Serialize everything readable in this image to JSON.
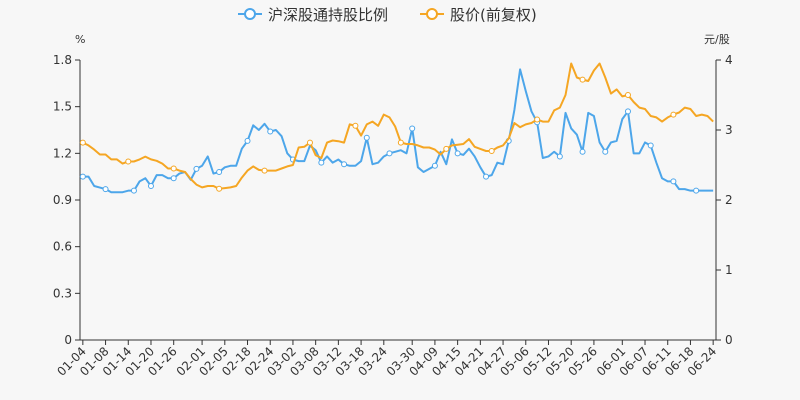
{
  "chart_data": {
    "type": "line",
    "title": "",
    "left_axis": {
      "unit": "%",
      "ylim": [
        0,
        1.8
      ],
      "ticks": [
        "0",
        "0.3",
        "0.6",
        "0.9",
        "1.2",
        "1.5",
        "1.8"
      ]
    },
    "right_axis": {
      "unit": "元/股",
      "ylim": [
        0,
        4
      ],
      "ticks": [
        "0",
        "1",
        "2",
        "3",
        "4"
      ]
    },
    "x_tick_labels": [
      "01-04",
      "01-08",
      "01-14",
      "01-20",
      "01-26",
      "02-01",
      "02-05",
      "02-18",
      "02-24",
      "03-02",
      "03-08",
      "03-12",
      "03-18",
      "03-24",
      "03-30",
      "04-09",
      "04-15",
      "04-21",
      "04-27",
      "05-06",
      "05-12",
      "05-20",
      "05-26",
      "06-01",
      "06-07",
      "06-11",
      "06-18",
      "06-24"
    ],
    "legend_position": "top-center",
    "series": [
      {
        "name": "沪深股通持股比例",
        "axis": "left",
        "color": "#4da6ea",
        "values": [
          1.05,
          1.05,
          0.99,
          0.98,
          0.97,
          0.95,
          0.95,
          0.95,
          0.96,
          0.96,
          1.02,
          1.04,
          0.99,
          1.06,
          1.06,
          1.04,
          1.04,
          1.07,
          1.08,
          1.03,
          1.1,
          1.12,
          1.18,
          1.07,
          1.08,
          1.11,
          1.12,
          1.12,
          1.23,
          1.28,
          1.38,
          1.35,
          1.39,
          1.34,
          1.35,
          1.31,
          1.2,
          1.16,
          1.15,
          1.15,
          1.25,
          1.22,
          1.14,
          1.18,
          1.14,
          1.16,
          1.13,
          1.12,
          1.12,
          1.15,
          1.3,
          1.13,
          1.14,
          1.18,
          1.2,
          1.21,
          1.22,
          1.2,
          1.36,
          1.11,
          1.08,
          1.1,
          1.12,
          1.21,
          1.13,
          1.29,
          1.2,
          1.19,
          1.23,
          1.18,
          1.11,
          1.05,
          1.06,
          1.14,
          1.13,
          1.28,
          1.48,
          1.74,
          1.6,
          1.47,
          1.4,
          1.17,
          1.18,
          1.21,
          1.18,
          1.46,
          1.36,
          1.32,
          1.21,
          1.46,
          1.44,
          1.27,
          1.21,
          1.27,
          1.28,
          1.42,
          1.47,
          1.2,
          1.2,
          1.27,
          1.25,
          1.14,
          1.04,
          1.02,
          1.02,
          0.97,
          0.97,
          0.96,
          0.96,
          0.96,
          0.96,
          0.96
        ],
        "marker_indices": [
          0,
          4,
          9,
          12,
          16,
          20,
          24,
          29,
          33,
          37,
          42,
          46,
          50,
          54,
          58,
          62,
          66,
          71,
          75,
          80,
          84,
          88,
          92,
          96,
          100,
          104,
          108
        ]
      },
      {
        "name": "股价(前复权)",
        "axis": "right",
        "color": "#f5a623",
        "values": [
          2.82,
          2.78,
          2.72,
          2.65,
          2.65,
          2.58,
          2.58,
          2.52,
          2.55,
          2.55,
          2.58,
          2.62,
          2.58,
          2.56,
          2.52,
          2.45,
          2.45,
          2.42,
          2.4,
          2.3,
          2.22,
          2.18,
          2.2,
          2.2,
          2.16,
          2.17,
          2.18,
          2.2,
          2.32,
          2.42,
          2.48,
          2.43,
          2.42,
          2.42,
          2.42,
          2.45,
          2.48,
          2.5,
          2.75,
          2.76,
          2.82,
          2.64,
          2.6,
          2.82,
          2.85,
          2.84,
          2.82,
          3.08,
          3.06,
          2.92,
          3.08,
          3.12,
          3.06,
          3.22,
          3.18,
          3.05,
          2.82,
          2.8,
          2.8,
          2.78,
          2.75,
          2.75,
          2.72,
          2.65,
          2.73,
          2.78,
          2.79,
          2.8,
          2.87,
          2.76,
          2.73,
          2.7,
          2.7,
          2.75,
          2.78,
          2.88,
          3.1,
          3.04,
          3.08,
          3.1,
          3.15,
          3.12,
          3.12,
          3.28,
          3.32,
          3.5,
          3.95,
          3.75,
          3.72,
          3.7,
          3.85,
          3.95,
          3.75,
          3.52,
          3.58,
          3.48,
          3.5,
          3.4,
          3.32,
          3.3,
          3.2,
          3.18,
          3.12,
          3.18,
          3.22,
          3.25,
          3.32,
          3.3,
          3.2,
          3.22,
          3.2,
          3.12
        ],
        "marker_indices": [
          0,
          8,
          16,
          24,
          32,
          40,
          48,
          56,
          64,
          72,
          80,
          88,
          96,
          104
        ]
      }
    ]
  }
}
